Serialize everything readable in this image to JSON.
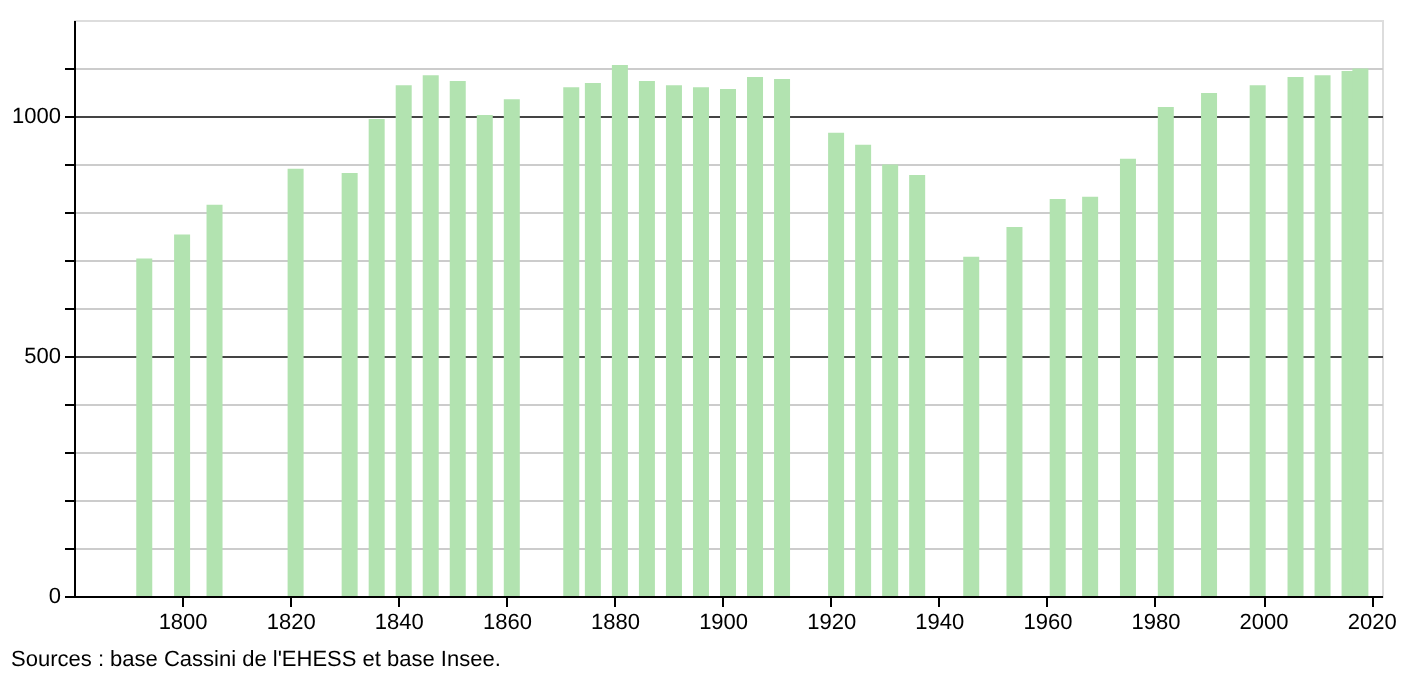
{
  "chart_data": {
    "type": "bar",
    "x": [
      1793,
      1800,
      1806,
      1821,
      1831,
      1836,
      1841,
      1846,
      1851,
      1856,
      1861,
      1872,
      1876,
      1881,
      1886,
      1891,
      1896,
      1901,
      1906,
      1911,
      1921,
      1926,
      1931,
      1936,
      1946,
      1954,
      1962,
      1968,
      1975,
      1982,
      1990,
      1999,
      2006,
      2011,
      2016,
      2018
    ],
    "values": [
      703,
      753,
      815,
      890,
      881,
      994,
      1064,
      1085,
      1073,
      1002,
      1035,
      1060,
      1069,
      1106,
      1073,
      1064,
      1060,
      1056,
      1081,
      1077,
      965,
      940,
      899,
      877,
      707,
      769,
      827,
      832,
      911,
      1019,
      1048,
      1064,
      1081,
      1085,
      1094,
      1099
    ],
    "color": "#b2e3b0",
    "xlim": [
      1780,
      2022
    ],
    "xticks": [
      1800,
      1820,
      1840,
      1860,
      1880,
      1900,
      1920,
      1940,
      1960,
      1980,
      2000,
      2020
    ],
    "ylim": [
      0,
      1200
    ],
    "yticks": [
      0,
      {
        "value": 100,
        "label": null
      },
      {
        "value": 200,
        "label": null
      },
      {
        "value": 300,
        "label": null
      },
      {
        "value": 400,
        "label": null
      },
      500,
      {
        "value": 600,
        "label": null
      },
      {
        "value": 700,
        "label": null
      },
      {
        "value": 800,
        "label": null
      },
      {
        "value": 900,
        "label": null
      },
      1000,
      {
        "value": 1100,
        "label": null
      }
    ],
    "grid": "y",
    "annotations": [
      "Sources : base Cassini de l'EHESS et base Insee."
    ]
  }
}
